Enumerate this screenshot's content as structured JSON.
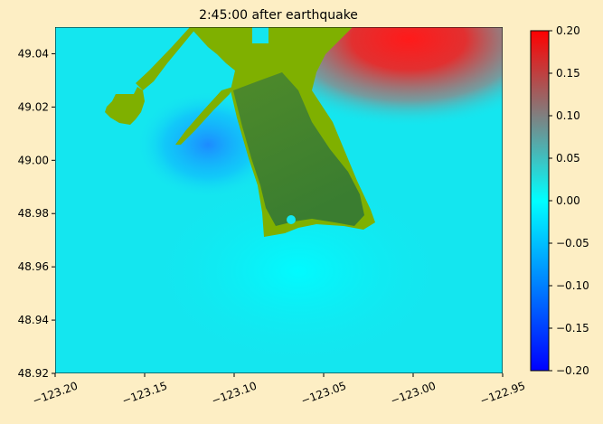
{
  "chart_data": {
    "type": "heatmap",
    "title": "2:45:00 after earthquake",
    "xlabel": "",
    "ylabel": "",
    "xlim": [
      -123.2,
      -122.95
    ],
    "ylim": [
      48.92,
      49.05
    ],
    "x_ticks": [
      -123.2,
      -123.15,
      -123.1,
      -123.05,
      -123.0,
      -122.95
    ],
    "x_tick_labels": [
      "−123.20",
      "−123.15",
      "−123.10",
      "−123.05",
      "−123.00",
      "−122.95"
    ],
    "y_ticks": [
      48.92,
      48.94,
      48.96,
      48.98,
      49.0,
      49.02,
      49.04
    ],
    "y_tick_labels": [
      "48.92",
      "48.94",
      "48.96",
      "48.98",
      "49.00",
      "49.02",
      "49.04"
    ],
    "colorbar": {
      "range": [
        -0.2,
        0.2
      ],
      "ticks": [
        -0.2,
        -0.15,
        -0.1,
        -0.05,
        0.0,
        0.05,
        0.1,
        0.15,
        0.2
      ],
      "tick_labels": [
        "−0.20",
        "−0.15",
        "−0.10",
        "−0.05",
        "0.00",
        "0.05",
        "0.10",
        "0.15",
        "0.20"
      ],
      "colors": [
        "#0000ff",
        "#00ffff",
        "#ff0000"
      ]
    },
    "colors": {
      "ocean_base": "#14e6ef",
      "land_low": "#7fb000",
      "land_high": "#3a7d30",
      "high_water": "#ea2a2a",
      "low_water": "#1d8bff",
      "figure_background": "#fdeec4"
    }
  }
}
